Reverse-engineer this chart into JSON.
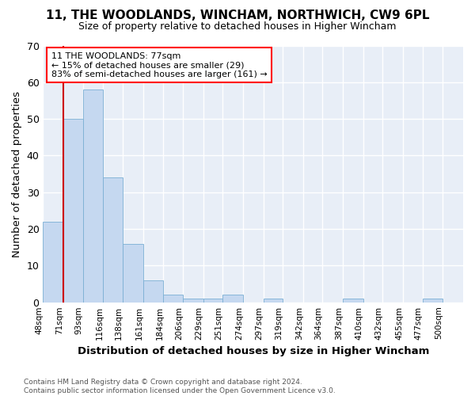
{
  "title": "11, THE WOODLANDS, WINCHAM, NORTHWICH, CW9 6PL",
  "subtitle": "Size of property relative to detached houses in Higher Wincham",
  "xlabel": "Distribution of detached houses by size in Higher Wincham",
  "ylabel": "Number of detached properties",
  "bin_labels": [
    "48sqm",
    "71sqm",
    "93sqm",
    "116sqm",
    "138sqm",
    "161sqm",
    "184sqm",
    "206sqm",
    "229sqm",
    "251sqm",
    "274sqm",
    "297sqm",
    "319sqm",
    "342sqm",
    "364sqm",
    "387sqm",
    "410sqm",
    "432sqm",
    "455sqm",
    "477sqm",
    "500sqm"
  ],
  "bar_values": [
    22,
    50,
    58,
    34,
    16,
    6,
    2,
    1,
    1,
    2,
    0,
    1,
    0,
    0,
    0,
    1,
    0,
    0,
    0,
    1,
    0
  ],
  "bar_color": "#c5d8f0",
  "bar_edge_color": "#7bafd4",
  "bg_color": "#e8eef7",
  "grid_color": "#ffffff",
  "vline_x_index": 1,
  "vline_color": "#cc0000",
  "ylim": [
    0,
    70
  ],
  "annotation_text_line1": "11 THE WOODLANDS: 77sqm",
  "annotation_text_line2": "← 15% of detached houses are smaller (29)",
  "annotation_text_line3": "83% of semi-detached houses are larger (161) →",
  "footer_text": "Contains HM Land Registry data © Crown copyright and database right 2024.\nContains public sector information licensed under the Open Government Licence v3.0.",
  "bin_edges": [
    48,
    71,
    93,
    116,
    138,
    161,
    184,
    206,
    229,
    251,
    274,
    297,
    319,
    342,
    364,
    387,
    410,
    432,
    455,
    477,
    500
  ]
}
